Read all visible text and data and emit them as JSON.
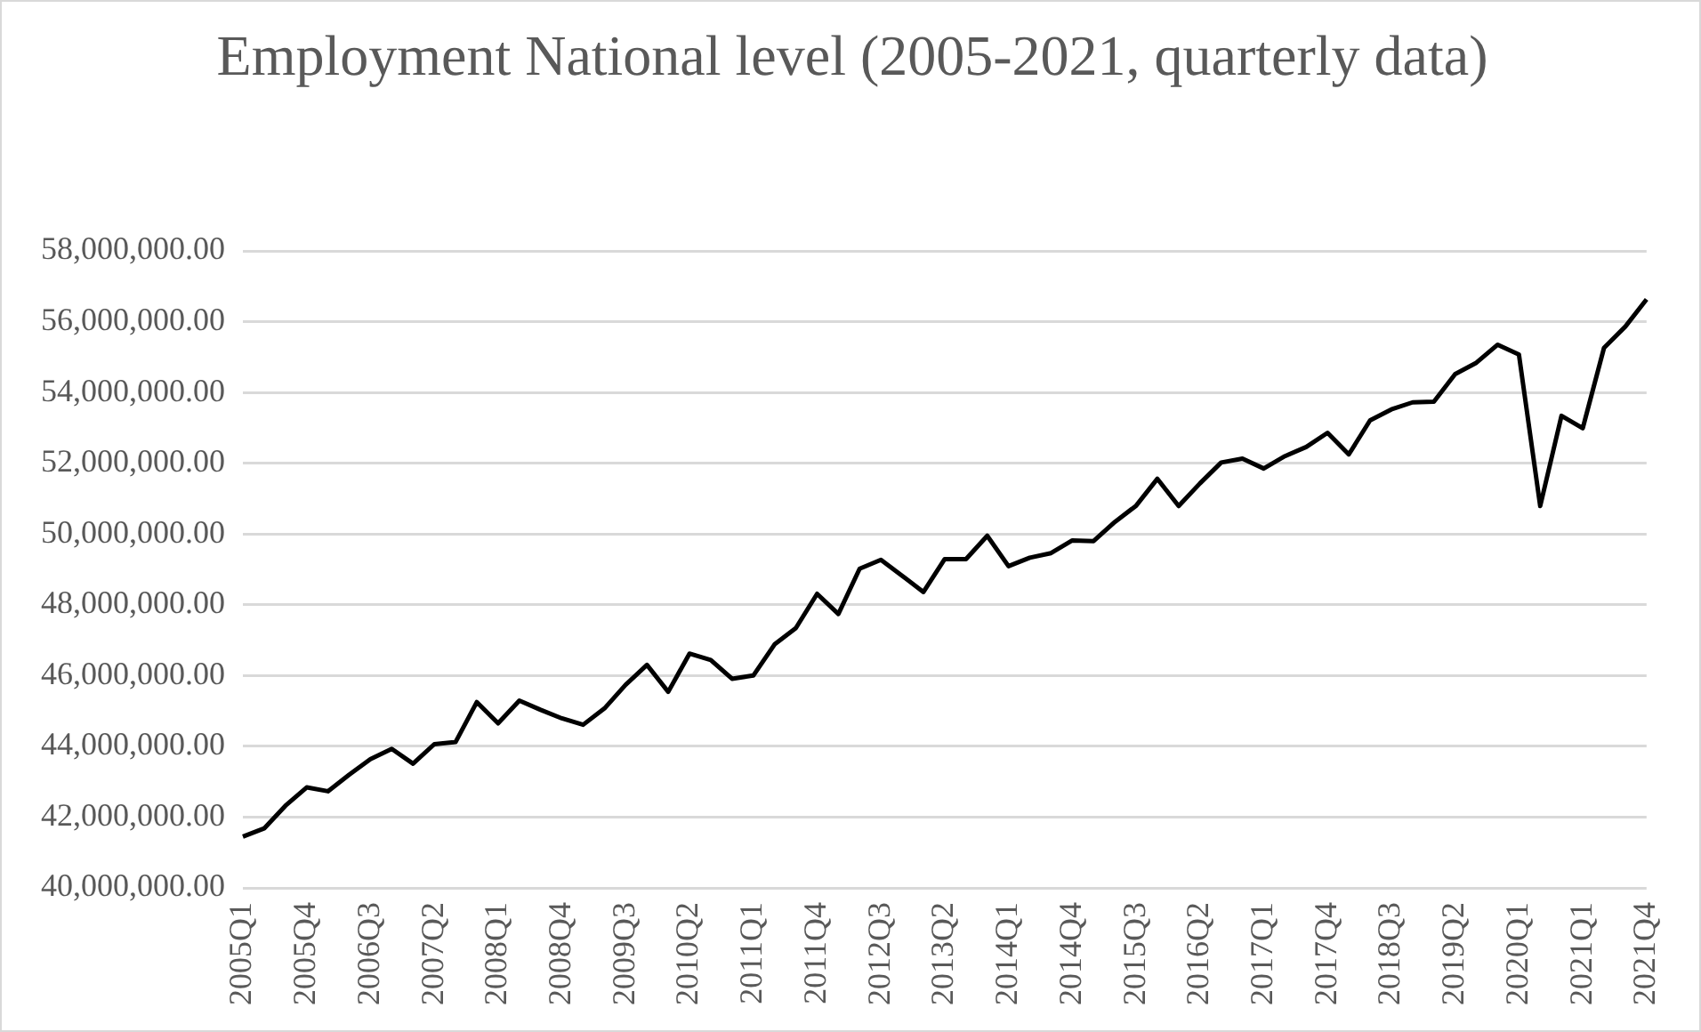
{
  "chart_data": {
    "type": "line",
    "title": "Employment National level (2005-2021, quarterly data)",
    "categories": [
      "2005Q1",
      null,
      null,
      "2005Q4",
      null,
      null,
      "2006Q3",
      null,
      null,
      "2007Q2",
      null,
      null,
      "2008Q1",
      null,
      null,
      "2008Q4",
      null,
      null,
      "2009Q3",
      null,
      null,
      "2010Q2",
      null,
      null,
      "2011Q1",
      null,
      null,
      "2011Q4",
      null,
      null,
      "2012Q3",
      null,
      null,
      "2013Q2",
      null,
      null,
      "2014Q1",
      null,
      null,
      "2014Q4",
      null,
      null,
      "2015Q3",
      null,
      null,
      "2016Q2",
      null,
      null,
      "2017Q1",
      null,
      null,
      "2017Q4",
      null,
      null,
      "2018Q3",
      null,
      null,
      "2019Q2",
      null,
      null,
      "2020Q1",
      null,
      null,
      "2021Q1",
      null,
      null,
      "2021Q4"
    ],
    "series": [
      {
        "color": "#000000",
        "values": [
          41450000,
          41680000,
          42320000,
          42840000,
          42730000,
          43200000,
          43640000,
          43930000,
          43510000,
          44060000,
          44120000,
          45250000,
          44650000,
          45290000,
          45030000,
          44790000,
          44610000,
          45070000,
          45740000,
          46300000,
          45540000,
          46620000,
          46440000,
          45910000,
          46000000,
          46880000,
          47340000,
          48310000,
          47740000,
          49020000,
          49270000,
          48820000,
          48360000,
          49290000,
          49290000,
          49950000,
          49090000,
          49330000,
          49460000,
          49820000,
          49800000,
          50340000,
          50800000,
          51560000,
          50790000,
          51430000,
          52020000,
          52130000,
          51850000,
          52200000,
          52460000,
          52860000,
          52250000,
          53210000,
          53520000,
          53720000,
          53740000,
          54520000,
          54840000,
          55350000,
          55070000,
          50790000,
          53340000,
          52990000,
          55260000,
          55860000,
          56630000
        ]
      }
    ],
    "ylim": [
      40000000,
      58000000
    ],
    "yticks": [
      {
        "value": 40000000,
        "label": "40,000,000.00"
      },
      {
        "value": 42000000,
        "label": "42,000,000.00"
      },
      {
        "value": 44000000,
        "label": "44,000,000.00"
      },
      {
        "value": 46000000,
        "label": "46,000,000.00"
      },
      {
        "value": 48000000,
        "label": "48,000,000.00"
      },
      {
        "value": 50000000,
        "label": "50,000,000.00"
      },
      {
        "value": 52000000,
        "label": "52,000,000.00"
      },
      {
        "value": 54000000,
        "label": "54,000,000.00"
      },
      {
        "value": 56000000,
        "label": "56,000,000.00"
      },
      {
        "value": 58000000,
        "label": "58,000,000.00"
      }
    ],
    "grid": "y",
    "legend": false
  }
}
